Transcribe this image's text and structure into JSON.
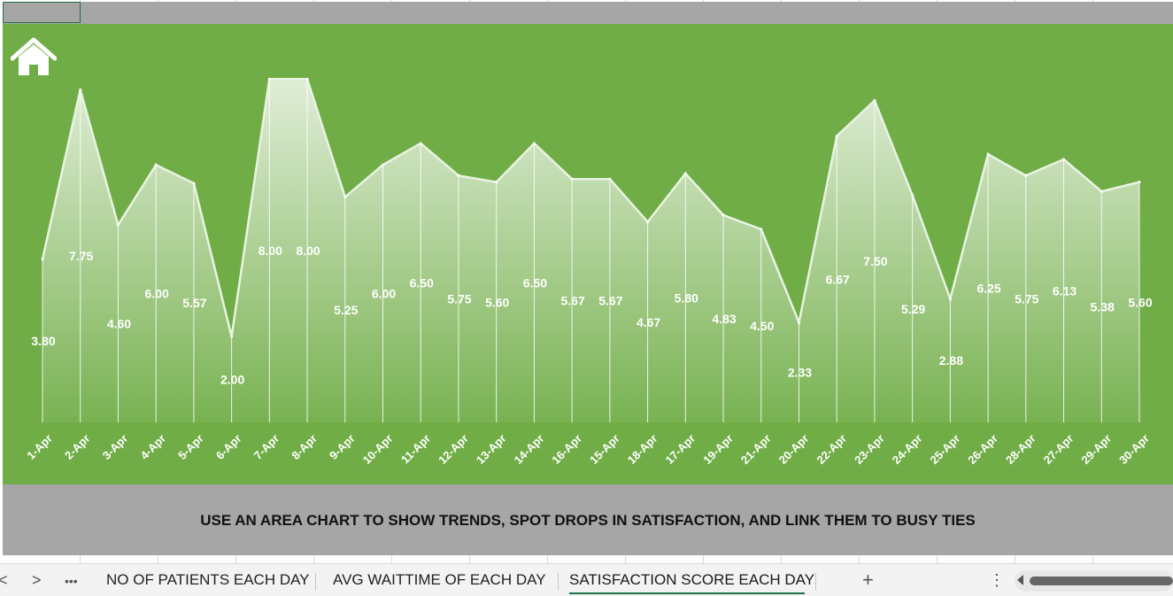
{
  "chart_data": {
    "type": "area",
    "categories": [
      "1-Apr",
      "2-Apr",
      "3-Apr",
      "4-Apr",
      "5-Apr",
      "6-Apr",
      "7-Apr",
      "8-Apr",
      "9-Apr",
      "10-Apr",
      "11-Apr",
      "12-Apr",
      "13-Apr",
      "14-Apr",
      "16-Apr",
      "15-Apr",
      "18-Apr",
      "17-Apr",
      "19-Apr",
      "21-Apr",
      "20-Apr",
      "22-Apr",
      "23-Apr",
      "24-Apr",
      "25-Apr",
      "26-Apr",
      "28-Apr",
      "27-Apr",
      "29-Apr",
      "30-Apr"
    ],
    "values": [
      3.8,
      7.75,
      4.6,
      6.0,
      5.57,
      2.0,
      8.0,
      8.0,
      5.25,
      6.0,
      6.5,
      5.75,
      5.6,
      6.5,
      5.67,
      5.67,
      4.67,
      5.8,
      4.83,
      4.5,
      2.33,
      6.67,
      7.5,
      5.29,
      2.88,
      6.25,
      5.75,
      6.13,
      5.38,
      5.6
    ],
    "value_labels": [
      "3.80",
      "7.75",
      "4.60",
      "6.00",
      "5.57",
      "2.00",
      "8.00",
      "8.00",
      "5.25",
      "6.00",
      "6.50",
      "5.75",
      "5.60",
      "6.50",
      "5.67",
      "5.67",
      "4.67",
      "5.80",
      "4.83",
      "4.50",
      "2.33",
      "6.67",
      "7.50",
      "5.29",
      "2.88",
      "6.25",
      "5.75",
      "6.13",
      "5.38",
      "5.60"
    ],
    "ylim": [
      0,
      8.5
    ],
    "grid": false,
    "legend": "none",
    "title": "",
    "xlabel": "",
    "ylabel": "",
    "colors": {
      "background": "#70ad47",
      "area": "#ffffff",
      "labels": "#ffffff"
    }
  },
  "home_icon": "home-icon",
  "note": "USE AN AREA CHART TO SHOW TRENDS, SPOT DROPS IN SATISFACTION, AND LINK THEM TO BUSY TIES",
  "tabs": {
    "more": "•••",
    "items": [
      "NO OF PATIENTS EACH DAY",
      "AVG WAITTIME OF EACH DAY",
      "SATISFACTION SCORE EACH DAY"
    ],
    "active": "SATISFACTION SCORE EACH DAY",
    "add": "+",
    "options": "⋮",
    "prev": "<",
    "next": ">"
  }
}
